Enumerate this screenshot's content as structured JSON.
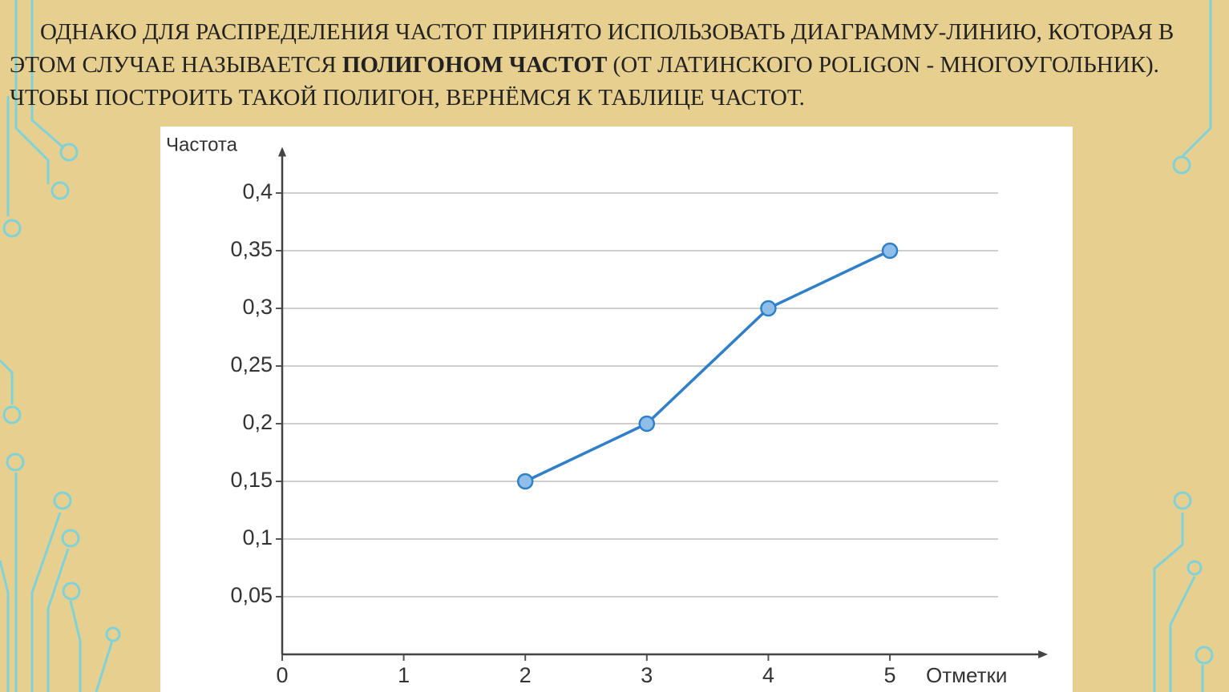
{
  "text": {
    "before": "ОДНАКО ДЛЯ РАСПРЕДЕЛЕНИЯ ЧАСТОТ ПРИНЯТО ИСПОЛЬЗОВАТЬ ДИАГРАММУ-ЛИНИЮ, КОТОРАЯ В ЭТОМ СЛУЧАЕ НАЗЫВАЕТСЯ ",
    "bold": "ПОЛИГОНОМ ЧАСТОТ",
    "after": " (ОТ ЛАТИНСКОГО POLIGON - МНОГОУГОЛЬНИК). ЧТОБЫ ПОСТРОИТЬ ТАКОЙ ПОЛИГОН, ВЕРНЁМСЯ К ТАБЛИЦЕ ЧАСТОТ."
  },
  "chart_data": {
    "type": "line",
    "y_label": "Частота",
    "x_label": "Отметки",
    "x": [
      2,
      3,
      4,
      5
    ],
    "series": [
      {
        "color": "#2f7fc9",
        "values": [
          0.15,
          0.2,
          0.3,
          0.35
        ]
      }
    ],
    "xlim": [
      0,
      6.3
    ],
    "xticks": [
      0,
      1,
      2,
      3,
      4,
      5
    ],
    "ylim": [
      0,
      0.44
    ],
    "yticks": [
      {
        "value": 0.05,
        "label": "0,05"
      },
      {
        "value": 0.1,
        "label": "0,1"
      },
      {
        "value": 0.15,
        "label": "0,15"
      },
      {
        "value": 0.2,
        "label": "0,2"
      },
      {
        "value": 0.25,
        "label": "0,25"
      },
      {
        "value": 0.3,
        "label": "0,3"
      },
      {
        "value": 0.35,
        "label": "0,35"
      },
      {
        "value": 0.4,
        "label": "0,4"
      }
    ],
    "grid": true
  }
}
